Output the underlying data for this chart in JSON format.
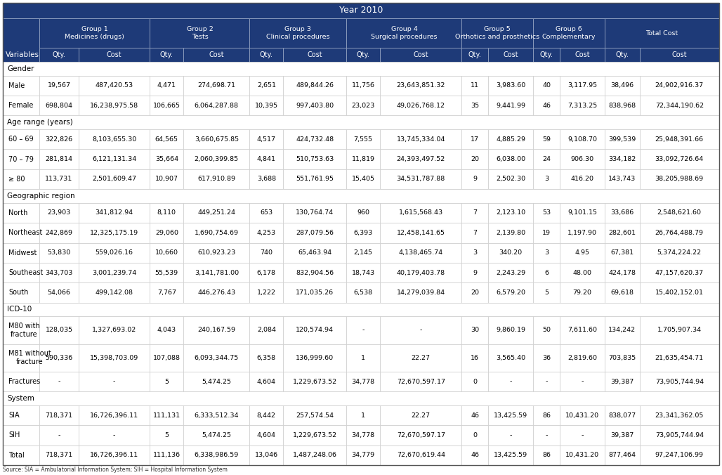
{
  "title": "Year 2010",
  "header_bg": "#1e3a78",
  "header_text": "#ffffff",
  "border_color": "#8899bb",
  "light_border": "#cccccc",
  "col_groups": [
    {
      "label": "Group 1\nMedicines (drugs)",
      "span": 2
    },
    {
      "label": "Group 2\nTests",
      "span": 2
    },
    {
      "label": "Group 3\nClinical procedures",
      "span": 2
    },
    {
      "label": "Group 4\nSurgical procedures",
      "span": 2
    },
    {
      "label": "Group 5\nOrthotics and prosthetics",
      "span": 2
    },
    {
      "label": "Group 6\nComplementary",
      "span": 2
    },
    {
      "label": "Total Cost",
      "span": 2
    }
  ],
  "col_headers": [
    "Qty.",
    "Cost",
    "Qty.",
    "Cost",
    "Qty.",
    "Cost",
    "Qty.",
    "Cost",
    "Qty.",
    "Cost",
    "Qty.",
    "Cost",
    "Qty.",
    "Cost"
  ],
  "col_widths_rel": [
    0.95,
    1.75,
    0.82,
    1.62,
    0.82,
    1.55,
    0.82,
    2.0,
    0.65,
    1.1,
    0.65,
    1.1,
    0.85,
    1.95
  ],
  "var_col_rel": 0.9,
  "sections": [
    {
      "label": "Gender",
      "rows": [
        {
          "label": "Male",
          "data": [
            "19,567",
            "487,420.53",
            "4,471",
            "274,698.71",
            "2,651",
            "489,844.26",
            "11,756",
            "23,643,851.32",
            "11",
            "3,983.60",
            "40",
            "3,117.95",
            "38,496",
            "24,902,916.37"
          ]
        },
        {
          "label": "Female",
          "data": [
            "698,804",
            "16,238,975.58",
            "106,665",
            "6,064,287.88",
            "10,395",
            "997,403.80",
            "23,023",
            "49,026,768.12",
            "35",
            "9,441.99",
            "46",
            "7,313.25",
            "838,968",
            "72,344,190.62"
          ]
        }
      ]
    },
    {
      "label": "Age range (years)",
      "rows": [
        {
          "label": "60 – 69",
          "data": [
            "322,826",
            "8,103,655.30",
            "64,565",
            "3,660,675.85",
            "4,517",
            "424,732.48",
            "7,555",
            "13,745,334.04",
            "17",
            "4,885.29",
            "59",
            "9,108.70",
            "399,539",
            "25,948,391.66"
          ]
        },
        {
          "label": "70 – 79",
          "data": [
            "281,814",
            "6,121,131.34",
            "35,664",
            "2,060,399.85",
            "4,841",
            "510,753.63",
            "11,819",
            "24,393,497.52",
            "20",
            "6,038.00",
            "24",
            "906.30",
            "334,182",
            "33,092,726.64"
          ]
        },
        {
          "label": "≥ 80",
          "data": [
            "113,731",
            "2,501,609.47",
            "10,907",
            "617,910.89",
            "3,688",
            "551,761.95",
            "15,405",
            "34,531,787.88",
            "9",
            "2,502.30",
            "3",
            "416.20",
            "143,743",
            "38,205,988.69"
          ]
        }
      ]
    },
    {
      "label": "Geographic region",
      "rows": [
        {
          "label": "North",
          "data": [
            "23,903",
            "341,812.94",
            "8,110",
            "449,251.24",
            "653",
            "130,764.74",
            "960",
            "1,615,568.43",
            "7",
            "2,123.10",
            "53",
            "9,101.15",
            "33,686",
            "2,548,621.60"
          ]
        },
        {
          "label": "Northeast",
          "data": [
            "242,869",
            "12,325,175.19",
            "29,060",
            "1,690,754.69",
            "4,253",
            "287,079.56",
            "6,393",
            "12,458,141.65",
            "7",
            "2,139.80",
            "19",
            "1,197.90",
            "282,601",
            "26,764,488.79"
          ]
        },
        {
          "label": "Midwest",
          "data": [
            "53,830",
            "559,026.16",
            "10,660",
            "610,923.23",
            "740",
            "65,463.94",
            "2,145",
            "4,138,465.74",
            "3",
            "340.20",
            "3",
            "4.95",
            "67,381",
            "5,374,224.22"
          ]
        },
        {
          "label": "Southeast",
          "data": [
            "343,703",
            "3,001,239.74",
            "55,539",
            "3,141,781.00",
            "6,178",
            "832,904.56",
            "18,743",
            "40,179,403.78",
            "9",
            "2,243.29",
            "6",
            "48.00",
            "424,178",
            "47,157,620.37"
          ]
        },
        {
          "label": "South",
          "data": [
            "54,066",
            "499,142.08",
            "7,767",
            "446,276.43",
            "1,222",
            "171,035.26",
            "6,538",
            "14,279,039.84",
            "20",
            "6,579.20",
            "5",
            "79.20",
            "69,618",
            "15,402,152.01"
          ]
        }
      ]
    },
    {
      "label": "ICD-10",
      "rows": [
        {
          "label": "M80 with\nfracture",
          "data": [
            "128,035",
            "1,327,693.02",
            "4,043",
            "240,167.59",
            "2,084",
            "120,574.94",
            "-",
            "-",
            "30",
            "9,860.19",
            "50",
            "7,611.60",
            "134,242",
            "1,705,907.34"
          ]
        },
        {
          "label": "M81 without\nfracture",
          "data": [
            "590,336",
            "15,398,703.09",
            "107,088",
            "6,093,344.75",
            "6,358",
            "136,999.60",
            "1",
            "22.27",
            "16",
            "3,565.40",
            "36",
            "2,819.60",
            "703,835",
            "21,635,454.71"
          ]
        },
        {
          "label": "Fractures",
          "data": [
            "-",
            "-",
            "5",
            "5,474.25",
            "4,604",
            "1,229,673.52",
            "34,778",
            "72,670,597.17",
            "0",
            "-",
            "-",
            "-",
            "39,387",
            "73,905,744.94"
          ]
        }
      ]
    },
    {
      "label": "System",
      "rows": [
        {
          "label": "SIA",
          "data": [
            "718,371",
            "16,726,396.11",
            "111,131",
            "6,333,512.34",
            "8,442",
            "257,574.54",
            "1",
            "22.27",
            "46",
            "13,425.59",
            "86",
            "10,431.20",
            "838,077",
            "23,341,362.05"
          ]
        },
        {
          "label": "SIH",
          "data": [
            "-",
            "-",
            "5",
            "5,474.25",
            "4,604",
            "1,229,673.52",
            "34,778",
            "72,670,597.17",
            "0",
            "-",
            "-",
            "-",
            "39,387",
            "73,905,744.94"
          ]
        },
        {
          "label": "Total",
          "data": [
            "718,371",
            "16,726,396.11",
            "111,136",
            "6,338,986.59",
            "13,046",
            "1,487,248.06",
            "34,779",
            "72,670,619.44",
            "46",
            "13,425.59",
            "86",
            "10,431.20",
            "877,464",
            "97,247,106.99"
          ]
        }
      ]
    }
  ],
  "footnote": "Source: SIA = Ambulatorial Information System; SIH = Hospital Information System"
}
